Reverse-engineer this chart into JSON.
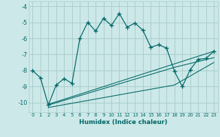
{
  "xlabel": "Humidex (Indice chaleur)",
  "background_color": "#cce8e8",
  "grid_color": "#aacccc",
  "line_color": "#006666",
  "xlim": [
    -0.5,
    23.5
  ],
  "ylim": [
    -10.6,
    -3.7
  ],
  "yticks": [
    -10,
    -9,
    -8,
    -7,
    -6,
    -5,
    -4
  ],
  "xticks": [
    0,
    1,
    2,
    3,
    4,
    5,
    6,
    7,
    8,
    9,
    10,
    11,
    12,
    13,
    14,
    15,
    16,
    17,
    18,
    19,
    20,
    21,
    22,
    23
  ],
  "main_curve_x": [
    0,
    1,
    2,
    3,
    4,
    5,
    6,
    7,
    8,
    9,
    10,
    11,
    12,
    13,
    14,
    15,
    16,
    17,
    18,
    19,
    20,
    21,
    22,
    23
  ],
  "main_curve_y": [
    -8.0,
    -8.45,
    -10.15,
    -8.9,
    -8.5,
    -8.8,
    -6.0,
    -5.0,
    -5.55,
    -4.75,
    -5.2,
    -4.45,
    -5.3,
    -5.05,
    -5.5,
    -6.55,
    -6.4,
    -6.6,
    -8.05,
    -9.0,
    -7.95,
    -7.3,
    -7.25,
    -6.8
  ],
  "line2_x": [
    2,
    23
  ],
  "line2_y": [
    -10.1,
    -6.8
  ],
  "line3_x": [
    2,
    18,
    23
  ],
  "line3_y": [
    -10.15,
    -7.8,
    -7.2
  ],
  "line4_x": [
    2,
    18,
    23
  ],
  "line4_y": [
    -10.3,
    -8.9,
    -7.5
  ]
}
